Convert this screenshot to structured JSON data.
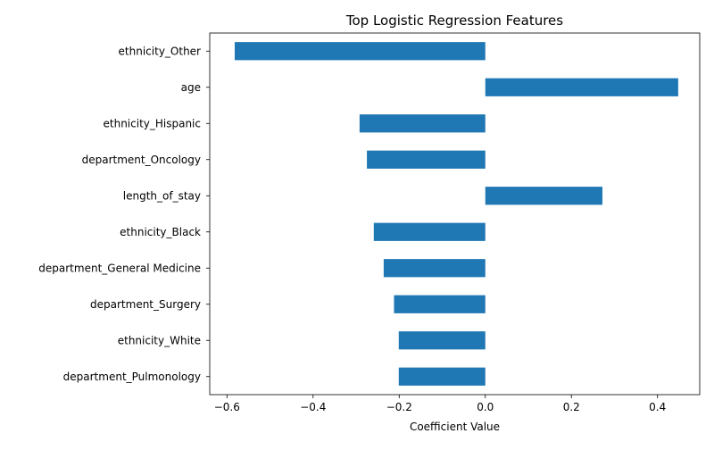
{
  "chart_data": {
    "type": "bar",
    "orientation": "horizontal",
    "title": "Top Logistic Regression Features",
    "xlabel": "Coefficient Value",
    "ylabel": "",
    "categories": [
      "ethnicity_Other",
      "age",
      "ethnicity_Hispanic",
      "department_Oncology",
      "length_of_stay",
      "ethnicity_Black",
      "department_General Medicine",
      "department_Surgery",
      "ethnicity_White",
      "department_Pulmonology"
    ],
    "values": [
      -0.582,
      0.448,
      -0.292,
      -0.275,
      0.272,
      -0.259,
      -0.236,
      -0.212,
      -0.201,
      -0.201
    ],
    "xlim": [
      -0.64,
      0.498
    ],
    "xticks": [
      -0.6,
      -0.4,
      -0.2,
      0.0,
      0.2,
      0.4
    ],
    "xtick_labels": [
      "−0.6",
      "−0.4",
      "−0.2",
      "0.0",
      "0.2",
      "0.4"
    ],
    "bar_color": "#1f77b4",
    "grid": false,
    "legend": "none"
  }
}
